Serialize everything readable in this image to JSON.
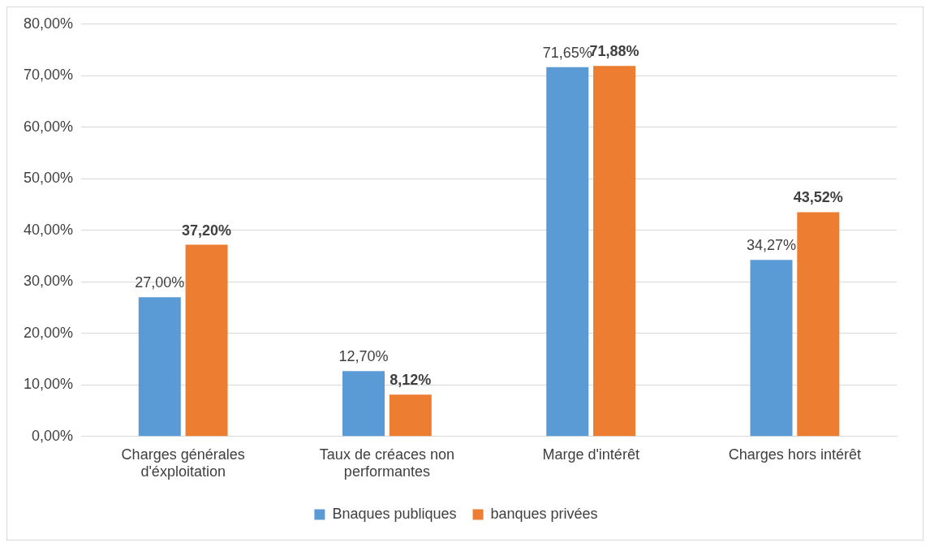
{
  "chart_data": {
    "type": "bar",
    "categories": [
      "Charges générales d'éxploitation",
      "Taux de créaces non performantes",
      "Marge d'intérêt",
      "Charges hors intérêt"
    ],
    "series": [
      {
        "name": "Bnaques publiques",
        "color": "#5b9bd5",
        "values": [
          27.0,
          12.7,
          71.65,
          34.27
        ],
        "value_labels": [
          "27,00%",
          "12,70%",
          "71,65%",
          "34,27%"
        ]
      },
      {
        "name": "banques privées",
        "color": "#ed7d31",
        "values": [
          37.2,
          8.12,
          71.88,
          43.52
        ],
        "value_labels": [
          "37,20%",
          "8,12%",
          "71,88%",
          "43,52%"
        ]
      }
    ],
    "ylim": [
      0,
      80
    ],
    "yticks": [
      {
        "value": 0,
        "label": "0,00%"
      },
      {
        "value": 10,
        "label": "10,00%"
      },
      {
        "value": 20,
        "label": "20,00%"
      },
      {
        "value": 30,
        "label": "30,00%"
      },
      {
        "value": 40,
        "label": "40,00%"
      },
      {
        "value": 50,
        "label": "50,00%"
      },
      {
        "value": 60,
        "label": "60,00%"
      },
      {
        "value": 70,
        "label": "70,00%"
      },
      {
        "value": 80,
        "label": "80,00%"
      }
    ],
    "grid": "y",
    "legend": "bottom"
  }
}
